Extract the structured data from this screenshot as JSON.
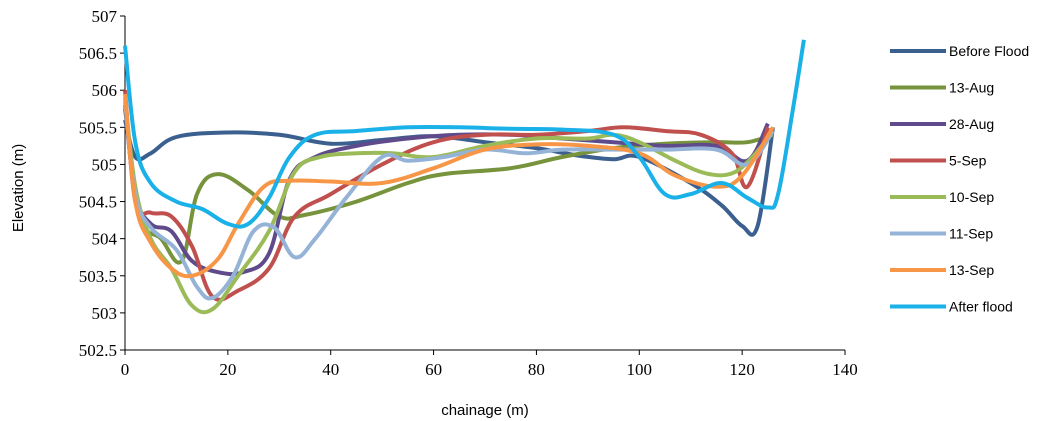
{
  "chart_data": {
    "type": "line",
    "xlabel": "chainage (m)",
    "ylabel": "Elevation (m)",
    "xlim": [
      0,
      140
    ],
    "ylim": [
      502.5,
      507
    ],
    "x_ticks": [
      "0",
      "20",
      "40",
      "60",
      "80",
      "100",
      "120",
      "140"
    ],
    "y_ticks": [
      "502.5",
      "503",
      "503.5",
      "504",
      "504.5",
      "505",
      "505.5",
      "506",
      "506.5",
      "507"
    ],
    "grid": false,
    "legend_position": "right",
    "series": [
      {
        "name": "Before Flood",
        "color": "#3b5f8f",
        "points": [
          [
            0,
            505.6
          ],
          [
            2,
            505.1
          ],
          [
            5,
            505.15
          ],
          [
            10,
            505.37
          ],
          [
            20,
            505.43
          ],
          [
            30,
            505.4
          ],
          [
            40,
            505.28
          ],
          [
            50,
            505.33
          ],
          [
            60,
            505.38
          ],
          [
            70,
            505.3
          ],
          [
            80,
            505.22
          ],
          [
            88,
            505.12
          ],
          [
            95,
            505.07
          ],
          [
            100,
            505.1
          ],
          [
            110,
            504.75
          ],
          [
            116,
            504.45
          ],
          [
            120,
            504.17
          ],
          [
            123,
            504.17
          ],
          [
            126,
            505.5
          ]
        ]
      },
      {
        "name": "13-Aug",
        "color": "#77933c",
        "points": [
          [
            0,
            505.75
          ],
          [
            3,
            504.3
          ],
          [
            7,
            504.0
          ],
          [
            11,
            503.7
          ],
          [
            14,
            504.6
          ],
          [
            18,
            504.87
          ],
          [
            24,
            504.65
          ],
          [
            30,
            504.3
          ],
          [
            35,
            504.32
          ],
          [
            45,
            504.5
          ],
          [
            55,
            504.75
          ],
          [
            62,
            504.87
          ],
          [
            75,
            504.95
          ],
          [
            85,
            505.1
          ],
          [
            95,
            505.22
          ],
          [
            105,
            505.28
          ],
          [
            115,
            505.3
          ],
          [
            121,
            505.3
          ],
          [
            126,
            505.4
          ]
        ]
      },
      {
        "name": "28-Aug",
        "color": "#5f4b8b",
        "points": [
          [
            0,
            505.8
          ],
          [
            2,
            504.6
          ],
          [
            5,
            504.2
          ],
          [
            9,
            504.1
          ],
          [
            13,
            503.7
          ],
          [
            18,
            503.55
          ],
          [
            23,
            503.55
          ],
          [
            28,
            503.8
          ],
          [
            32,
            504.8
          ],
          [
            37,
            505.1
          ],
          [
            45,
            505.25
          ],
          [
            55,
            505.35
          ],
          [
            65,
            505.4
          ],
          [
            75,
            505.4
          ],
          [
            85,
            505.35
          ],
          [
            95,
            505.3
          ],
          [
            105,
            505.25
          ],
          [
            115,
            505.25
          ],
          [
            121,
            505.05
          ],
          [
            125,
            505.55
          ]
        ]
      },
      {
        "name": "5-Sep",
        "color": "#c0504d",
        "points": [
          [
            0,
            506.0
          ],
          [
            2,
            504.5
          ],
          [
            5,
            504.35
          ],
          [
            9,
            504.3
          ],
          [
            13,
            503.9
          ],
          [
            17,
            503.22
          ],
          [
            22,
            503.3
          ],
          [
            28,
            503.6
          ],
          [
            33,
            504.3
          ],
          [
            40,
            504.6
          ],
          [
            50,
            505.0
          ],
          [
            60,
            505.3
          ],
          [
            70,
            505.4
          ],
          [
            80,
            505.4
          ],
          [
            90,
            505.45
          ],
          [
            97,
            505.5
          ],
          [
            105,
            505.45
          ],
          [
            112,
            505.4
          ],
          [
            118,
            505.15
          ],
          [
            121,
            504.7
          ],
          [
            125,
            505.5
          ]
        ]
      },
      {
        "name": "10-Sep",
        "color": "#9bbb59",
        "points": [
          [
            0,
            505.9
          ],
          [
            2,
            504.7
          ],
          [
            5,
            504.0
          ],
          [
            9,
            503.6
          ],
          [
            13,
            503.1
          ],
          [
            17,
            503.05
          ],
          [
            22,
            503.5
          ],
          [
            28,
            504.1
          ],
          [
            33,
            504.9
          ],
          [
            38,
            505.1
          ],
          [
            45,
            505.15
          ],
          [
            52,
            505.15
          ],
          [
            60,
            505.1
          ],
          [
            70,
            505.25
          ],
          [
            80,
            505.35
          ],
          [
            90,
            505.35
          ],
          [
            95,
            505.4
          ],
          [
            100,
            505.3
          ],
          [
            107,
            505.05
          ],
          [
            113,
            504.88
          ],
          [
            118,
            504.88
          ],
          [
            122,
            505.1
          ],
          [
            126,
            505.45
          ]
        ]
      },
      {
        "name": "11-Sep",
        "color": "#95b3d7",
        "points": [
          [
            0,
            505.85
          ],
          [
            2,
            504.6
          ],
          [
            5,
            504.15
          ],
          [
            10,
            503.85
          ],
          [
            14,
            503.35
          ],
          [
            17,
            503.2
          ],
          [
            21,
            503.5
          ],
          [
            25,
            504.1
          ],
          [
            29,
            504.15
          ],
          [
            33,
            503.75
          ],
          [
            37,
            504.0
          ],
          [
            43,
            504.55
          ],
          [
            50,
            505.1
          ],
          [
            55,
            505.05
          ],
          [
            62,
            505.1
          ],
          [
            70,
            505.2
          ],
          [
            78,
            505.15
          ],
          [
            85,
            505.2
          ],
          [
            95,
            505.2
          ],
          [
            105,
            505.2
          ],
          [
            115,
            505.2
          ],
          [
            121,
            505.0
          ],
          [
            126,
            505.45
          ]
        ]
      },
      {
        "name": "13-Sep",
        "color": "#f79646",
        "points": [
          [
            0,
            505.95
          ],
          [
            2,
            504.5
          ],
          [
            5,
            503.95
          ],
          [
            9,
            503.6
          ],
          [
            13,
            503.5
          ],
          [
            18,
            503.72
          ],
          [
            22,
            504.2
          ],
          [
            27,
            504.7
          ],
          [
            32,
            504.78
          ],
          [
            40,
            504.77
          ],
          [
            50,
            504.75
          ],
          [
            60,
            504.95
          ],
          [
            70,
            505.2
          ],
          [
            80,
            505.27
          ],
          [
            90,
            505.25
          ],
          [
            100,
            505.15
          ],
          [
            107,
            504.85
          ],
          [
            115,
            504.7
          ],
          [
            120,
            504.85
          ],
          [
            126,
            505.5
          ]
        ]
      },
      {
        "name": "After flood",
        "color": "#1ab0e8",
        "points": [
          [
            0,
            506.6
          ],
          [
            2,
            505.3
          ],
          [
            5,
            504.75
          ],
          [
            10,
            504.5
          ],
          [
            15,
            504.4
          ],
          [
            20,
            504.2
          ],
          [
            24,
            504.2
          ],
          [
            28,
            504.55
          ],
          [
            32,
            505.1
          ],
          [
            37,
            505.4
          ],
          [
            45,
            505.45
          ],
          [
            55,
            505.5
          ],
          [
            65,
            505.5
          ],
          [
            75,
            505.48
          ],
          [
            85,
            505.47
          ],
          [
            95,
            505.4
          ],
          [
            100,
            505.1
          ],
          [
            105,
            504.6
          ],
          [
            110,
            504.6
          ],
          [
            116,
            504.75
          ],
          [
            121,
            504.55
          ],
          [
            125,
            504.42
          ],
          [
            127,
            504.6
          ],
          [
            130,
            505.8
          ],
          [
            132,
            506.68
          ]
        ]
      }
    ]
  }
}
